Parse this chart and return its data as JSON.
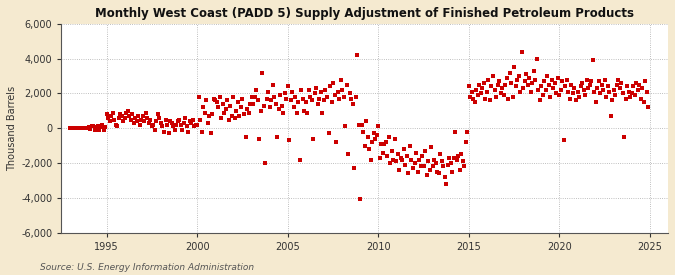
{
  "title": "Monthly West Coast (PADD 5) Supply Adjustment of Finished Petroleum Products",
  "ylabel": "Thousand Barrels",
  "source": "Source: U.S. Energy Information Administration",
  "background_color": "#f5ead0",
  "plot_bg_color": "#ffffff",
  "dot_color": "#cc0000",
  "ylim": [
    -6000,
    6000
  ],
  "xlim_start": 1992.5,
  "xlim_end": 2026.0,
  "yticks": [
    -6000,
    -4000,
    -2000,
    0,
    2000,
    4000,
    6000
  ],
  "xticks": [
    1995,
    2000,
    2005,
    2010,
    2015,
    2020,
    2025
  ],
  "data_points": [
    [
      1993.0,
      0
    ],
    [
      1993.083,
      0
    ],
    [
      1993.167,
      0
    ],
    [
      1993.25,
      0
    ],
    [
      1993.333,
      0
    ],
    [
      1993.417,
      0
    ],
    [
      1993.5,
      0
    ],
    [
      1993.583,
      0
    ],
    [
      1993.667,
      0
    ],
    [
      1993.75,
      0
    ],
    [
      1993.833,
      0
    ],
    [
      1993.917,
      0
    ],
    [
      1994.0,
      50
    ],
    [
      1994.083,
      -50
    ],
    [
      1994.167,
      100
    ],
    [
      1994.25,
      150
    ],
    [
      1994.333,
      -100
    ],
    [
      1994.417,
      80
    ],
    [
      1994.5,
      120
    ],
    [
      1994.583,
      -80
    ],
    [
      1994.667,
      60
    ],
    [
      1994.75,
      200
    ],
    [
      1994.833,
      -120
    ],
    [
      1994.917,
      90
    ],
    [
      1995.0,
      800
    ],
    [
      1995.083,
      600
    ],
    [
      1995.167,
      400
    ],
    [
      1995.25,
      700
    ],
    [
      1995.333,
      900
    ],
    [
      1995.417,
      500
    ],
    [
      1995.5,
      200
    ],
    [
      1995.583,
      100
    ],
    [
      1995.667,
      600
    ],
    [
      1995.75,
      800
    ],
    [
      1995.833,
      700
    ],
    [
      1995.917,
      400
    ],
    [
      1996.0,
      600
    ],
    [
      1996.083,
      900
    ],
    [
      1996.167,
      1000
    ],
    [
      1996.25,
      700
    ],
    [
      1996.333,
      500
    ],
    [
      1996.417,
      800
    ],
    [
      1996.5,
      300
    ],
    [
      1996.583,
      600
    ],
    [
      1996.667,
      400
    ],
    [
      1996.75,
      700
    ],
    [
      1996.833,
      200
    ],
    [
      1996.917,
      500
    ],
    [
      1997.0,
      700
    ],
    [
      1997.083,
      400
    ],
    [
      1997.167,
      900
    ],
    [
      1997.25,
      600
    ],
    [
      1997.333,
      300
    ],
    [
      1997.417,
      500
    ],
    [
      1997.5,
      100
    ],
    [
      1997.583,
      200
    ],
    [
      1997.667,
      -100
    ],
    [
      1997.75,
      400
    ],
    [
      1997.833,
      800
    ],
    [
      1997.917,
      600
    ],
    [
      1998.0,
      300
    ],
    [
      1998.083,
      100
    ],
    [
      1998.167,
      -200
    ],
    [
      1998.25,
      500
    ],
    [
      1998.333,
      200
    ],
    [
      1998.417,
      -300
    ],
    [
      1998.5,
      400
    ],
    [
      1998.583,
      300
    ],
    [
      1998.667,
      100
    ],
    [
      1998.75,
      -100
    ],
    [
      1998.833,
      200
    ],
    [
      1998.917,
      400
    ],
    [
      1999.0,
      500
    ],
    [
      1999.083,
      200
    ],
    [
      1999.167,
      -100
    ],
    [
      1999.25,
      300
    ],
    [
      1999.333,
      600
    ],
    [
      1999.417,
      100
    ],
    [
      1999.5,
      -200
    ],
    [
      1999.583,
      400
    ],
    [
      1999.667,
      300
    ],
    [
      1999.75,
      500
    ],
    [
      1999.833,
      100
    ],
    [
      1999.917,
      200
    ],
    [
      2000.0,
      200
    ],
    [
      2000.083,
      1800
    ],
    [
      2000.167,
      500
    ],
    [
      2000.25,
      -200
    ],
    [
      2000.333,
      1200
    ],
    [
      2000.417,
      900
    ],
    [
      2000.5,
      1600
    ],
    [
      2000.583,
      300
    ],
    [
      2000.667,
      700
    ],
    [
      2000.75,
      -300
    ],
    [
      2000.833,
      800
    ],
    [
      2000.917,
      1700
    ],
    [
      2001.0,
      1600
    ],
    [
      2001.083,
      1500
    ],
    [
      2001.167,
      1200
    ],
    [
      2001.25,
      1800
    ],
    [
      2001.333,
      600
    ],
    [
      2001.417,
      1400
    ],
    [
      2001.5,
      900
    ],
    [
      2001.583,
      1100
    ],
    [
      2001.667,
      1600
    ],
    [
      2001.75,
      500
    ],
    [
      2001.833,
      1300
    ],
    [
      2001.917,
      700
    ],
    [
      2002.0,
      1800
    ],
    [
      2002.083,
      600
    ],
    [
      2002.167,
      1000
    ],
    [
      2002.25,
      1500
    ],
    [
      2002.333,
      700
    ],
    [
      2002.417,
      1200
    ],
    [
      2002.5,
      1700
    ],
    [
      2002.583,
      800
    ],
    [
      2002.667,
      -500
    ],
    [
      2002.75,
      1100
    ],
    [
      2002.833,
      900
    ],
    [
      2002.917,
      1400
    ],
    [
      2003.0,
      1800
    ],
    [
      2003.083,
      1400
    ],
    [
      2003.167,
      1800
    ],
    [
      2003.25,
      2200
    ],
    [
      2003.333,
      1600
    ],
    [
      2003.417,
      -600
    ],
    [
      2003.5,
      1000
    ],
    [
      2003.583,
      3200
    ],
    [
      2003.667,
      1300
    ],
    [
      2003.75,
      -2000
    ],
    [
      2003.833,
      1700
    ],
    [
      2003.917,
      2100
    ],
    [
      2004.0,
      1200
    ],
    [
      2004.083,
      1600
    ],
    [
      2004.167,
      2500
    ],
    [
      2004.25,
      1800
    ],
    [
      2004.333,
      1400
    ],
    [
      2004.417,
      -500
    ],
    [
      2004.5,
      1100
    ],
    [
      2004.583,
      1900
    ],
    [
      2004.667,
      1300
    ],
    [
      2004.75,
      900
    ],
    [
      2004.833,
      2000
    ],
    [
      2004.917,
      1700
    ],
    [
      2005.0,
      2400
    ],
    [
      2005.083,
      -700
    ],
    [
      2005.167,
      1600
    ],
    [
      2005.25,
      2100
    ],
    [
      2005.333,
      1200
    ],
    [
      2005.417,
      1800
    ],
    [
      2005.5,
      900
    ],
    [
      2005.583,
      1500
    ],
    [
      2005.667,
      -1800
    ],
    [
      2005.75,
      2200
    ],
    [
      2005.833,
      1700
    ],
    [
      2005.917,
      1000
    ],
    [
      2006.0,
      1500
    ],
    [
      2006.083,
      900
    ],
    [
      2006.167,
      2200
    ],
    [
      2006.25,
      1800
    ],
    [
      2006.333,
      1600
    ],
    [
      2006.417,
      -600
    ],
    [
      2006.5,
      2000
    ],
    [
      2006.583,
      2300
    ],
    [
      2006.667,
      1400
    ],
    [
      2006.75,
      1700
    ],
    [
      2006.833,
      2100
    ],
    [
      2006.917,
      900
    ],
    [
      2007.0,
      1600
    ],
    [
      2007.083,
      2200
    ],
    [
      2007.167,
      1800
    ],
    [
      2007.25,
      -300
    ],
    [
      2007.333,
      2400
    ],
    [
      2007.417,
      1500
    ],
    [
      2007.5,
      2600
    ],
    [
      2007.583,
      1900
    ],
    [
      2007.667,
      -800
    ],
    [
      2007.75,
      2100
    ],
    [
      2007.833,
      1700
    ],
    [
      2007.917,
      2800
    ],
    [
      2008.0,
      2200
    ],
    [
      2008.083,
      1800
    ],
    [
      2008.167,
      100
    ],
    [
      2008.25,
      2500
    ],
    [
      2008.333,
      -1500
    ],
    [
      2008.417,
      2000
    ],
    [
      2008.5,
      1700
    ],
    [
      2008.583,
      1400
    ],
    [
      2008.667,
      -2300
    ],
    [
      2008.75,
      1800
    ],
    [
      2008.833,
      4200
    ],
    [
      2008.917,
      200
    ],
    [
      2009.0,
      -4100
    ],
    [
      2009.083,
      200
    ],
    [
      2009.167,
      -200
    ],
    [
      2009.25,
      -1000
    ],
    [
      2009.333,
      400
    ],
    [
      2009.417,
      -500
    ],
    [
      2009.5,
      -1200
    ],
    [
      2009.583,
      -1800
    ],
    [
      2009.667,
      -800
    ],
    [
      2009.75,
      -300
    ],
    [
      2009.833,
      -600
    ],
    [
      2009.917,
      -400
    ],
    [
      2010.0,
      100
    ],
    [
      2010.083,
      -1700
    ],
    [
      2010.167,
      -900
    ],
    [
      2010.25,
      -1400
    ],
    [
      2010.333,
      -900
    ],
    [
      2010.417,
      -800
    ],
    [
      2010.5,
      -1600
    ],
    [
      2010.583,
      -500
    ],
    [
      2010.667,
      -2000
    ],
    [
      2010.75,
      -1300
    ],
    [
      2010.833,
      -1800
    ],
    [
      2010.917,
      -600
    ],
    [
      2011.0,
      -1900
    ],
    [
      2011.083,
      -1500
    ],
    [
      2011.167,
      -2400
    ],
    [
      2011.25,
      -1700
    ],
    [
      2011.333,
      -1800
    ],
    [
      2011.417,
      -1200
    ],
    [
      2011.5,
      -2100
    ],
    [
      2011.583,
      -1600
    ],
    [
      2011.667,
      -2600
    ],
    [
      2011.75,
      -1000
    ],
    [
      2011.833,
      -1800
    ],
    [
      2011.917,
      -2300
    ],
    [
      2012.0,
      -2000
    ],
    [
      2012.083,
      -1400
    ],
    [
      2012.167,
      -2500
    ],
    [
      2012.25,
      -1800
    ],
    [
      2012.333,
      -2200
    ],
    [
      2012.417,
      -1600
    ],
    [
      2012.5,
      -2200
    ],
    [
      2012.583,
      -1300
    ],
    [
      2012.667,
      -2700
    ],
    [
      2012.75,
      -1900
    ],
    [
      2012.833,
      -2400
    ],
    [
      2012.917,
      -1100
    ],
    [
      2013.0,
      -2200
    ],
    [
      2013.083,
      -1800
    ],
    [
      2013.167,
      -2000
    ],
    [
      2013.25,
      -2500
    ],
    [
      2013.333,
      -2600
    ],
    [
      2013.417,
      -1500
    ],
    [
      2013.5,
      -1900
    ],
    [
      2013.583,
      -2200
    ],
    [
      2013.667,
      -2800
    ],
    [
      2013.75,
      -3200
    ],
    [
      2013.833,
      -2100
    ],
    [
      2013.917,
      -1700
    ],
    [
      2014.0,
      -2000
    ],
    [
      2014.083,
      -2500
    ],
    [
      2014.167,
      -1700
    ],
    [
      2014.25,
      -200
    ],
    [
      2014.333,
      -1800
    ],
    [
      2014.417,
      -1600
    ],
    [
      2014.5,
      -2400
    ],
    [
      2014.583,
      -1500
    ],
    [
      2014.667,
      -1900
    ],
    [
      2014.75,
      -2200
    ],
    [
      2014.833,
      -800
    ],
    [
      2014.917,
      -200
    ],
    [
      2015.0,
      2400
    ],
    [
      2015.083,
      1800
    ],
    [
      2015.167,
      2100
    ],
    [
      2015.25,
      1700
    ],
    [
      2015.333,
      1500
    ],
    [
      2015.417,
      2200
    ],
    [
      2015.5,
      1900
    ],
    [
      2015.583,
      2500
    ],
    [
      2015.667,
      2000
    ],
    [
      2015.75,
      2300
    ],
    [
      2015.833,
      2600
    ],
    [
      2015.917,
      1700
    ],
    [
      2016.0,
      2100
    ],
    [
      2016.083,
      2800
    ],
    [
      2016.167,
      1600
    ],
    [
      2016.25,
      2400
    ],
    [
      2016.333,
      3000
    ],
    [
      2016.417,
      2200
    ],
    [
      2016.5,
      1800
    ],
    [
      2016.583,
      2500
    ],
    [
      2016.667,
      2700
    ],
    [
      2016.75,
      2000
    ],
    [
      2016.833,
      2300
    ],
    [
      2016.917,
      1900
    ],
    [
      2017.0,
      2500
    ],
    [
      2017.083,
      2900
    ],
    [
      2017.167,
      1700
    ],
    [
      2017.25,
      3200
    ],
    [
      2017.333,
      2600
    ],
    [
      2017.417,
      1800
    ],
    [
      2017.5,
      3500
    ],
    [
      2017.583,
      2400
    ],
    [
      2017.667,
      2800
    ],
    [
      2017.75,
      3000
    ],
    [
      2017.833,
      2100
    ],
    [
      2017.917,
      4400
    ],
    [
      2018.0,
      2300
    ],
    [
      2018.083,
      2700
    ],
    [
      2018.167,
      3100
    ],
    [
      2018.25,
      2500
    ],
    [
      2018.333,
      2900
    ],
    [
      2018.417,
      2100
    ],
    [
      2018.5,
      2600
    ],
    [
      2018.583,
      3300
    ],
    [
      2018.667,
      2800
    ],
    [
      2018.75,
      4000
    ],
    [
      2018.833,
      2200
    ],
    [
      2018.917,
      1600
    ],
    [
      2019.0,
      2400
    ],
    [
      2019.083,
      1900
    ],
    [
      2019.167,
      2700
    ],
    [
      2019.25,
      2200
    ],
    [
      2019.333,
      3000
    ],
    [
      2019.417,
      2500
    ],
    [
      2019.5,
      1800
    ],
    [
      2019.583,
      2800
    ],
    [
      2019.667,
      2300
    ],
    [
      2019.75,
      2600
    ],
    [
      2019.833,
      2000
    ],
    [
      2019.917,
      2900
    ],
    [
      2020.0,
      1900
    ],
    [
      2020.083,
      2200
    ],
    [
      2020.167,
      2700
    ],
    [
      2020.25,
      -700
    ],
    [
      2020.333,
      2400
    ],
    [
      2020.417,
      2800
    ],
    [
      2020.5,
      2100
    ],
    [
      2020.583,
      1700
    ],
    [
      2020.667,
      2500
    ],
    [
      2020.75,
      2000
    ],
    [
      2020.833,
      2300
    ],
    [
      2020.917,
      1600
    ],
    [
      2021.0,
      2100
    ],
    [
      2021.083,
      1800
    ],
    [
      2021.167,
      2400
    ],
    [
      2021.25,
      2600
    ],
    [
      2021.333,
      2200
    ],
    [
      2021.417,
      1900
    ],
    [
      2021.5,
      2800
    ],
    [
      2021.583,
      2300
    ],
    [
      2021.667,
      2500
    ],
    [
      2021.75,
      2700
    ],
    [
      2021.833,
      3900
    ],
    [
      2021.917,
      2100
    ],
    [
      2022.0,
      1500
    ],
    [
      2022.083,
      2300
    ],
    [
      2022.167,
      2700
    ],
    [
      2022.25,
      2000
    ],
    [
      2022.333,
      2500
    ],
    [
      2022.417,
      2200
    ],
    [
      2022.5,
      2800
    ],
    [
      2022.583,
      1800
    ],
    [
      2022.667,
      2400
    ],
    [
      2022.75,
      2100
    ],
    [
      2022.833,
      700
    ],
    [
      2022.917,
      1600
    ],
    [
      2023.0,
      2200
    ],
    [
      2023.083,
      1900
    ],
    [
      2023.167,
      2500
    ],
    [
      2023.25,
      2800
    ],
    [
      2023.333,
      2300
    ],
    [
      2023.417,
      2600
    ],
    [
      2023.5,
      2000
    ],
    [
      2023.583,
      -500
    ],
    [
      2023.667,
      1700
    ],
    [
      2023.75,
      2400
    ],
    [
      2023.833,
      2100
    ],
    [
      2023.917,
      1800
    ],
    [
      2024.0,
      2000
    ],
    [
      2024.083,
      2400
    ],
    [
      2024.167,
      1900
    ],
    [
      2024.25,
      2600
    ],
    [
      2024.333,
      2200
    ],
    [
      2024.417,
      2500
    ],
    [
      2024.5,
      1700
    ],
    [
      2024.583,
      2300
    ],
    [
      2024.667,
      1500
    ],
    [
      2024.75,
      2700
    ],
    [
      2024.833,
      2100
    ],
    [
      2024.917,
      1200
    ]
  ]
}
